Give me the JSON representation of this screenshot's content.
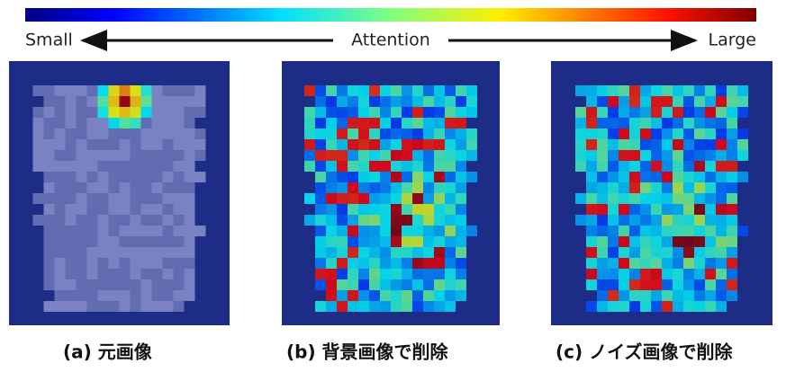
{
  "header": {
    "small": "Small",
    "attention": "Attention",
    "large": "Large"
  },
  "panels": [
    {
      "caption": "(a)  元画像"
    },
    {
      "caption": "(b)  背景画像で削除"
    },
    {
      "caption": "(c)  ノイズ画像で削除"
    }
  ]
}
